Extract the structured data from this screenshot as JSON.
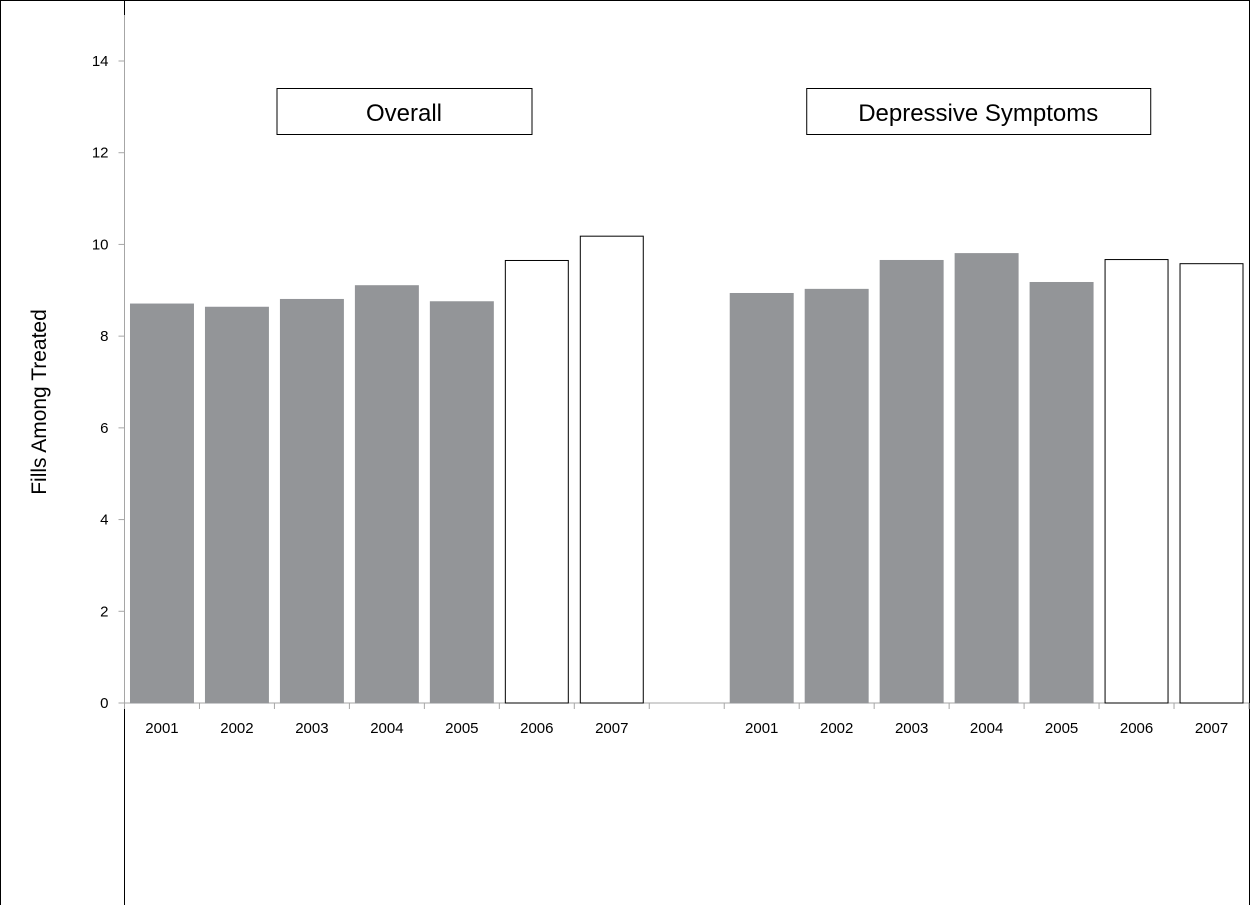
{
  "chart_data": {
    "type": "bar",
    "ylabel": "Fills Among Treated",
    "xlabel": "",
    "ylim": [
      0,
      15
    ],
    "yticks": [
      0,
      2,
      4,
      6,
      8,
      10,
      12,
      14
    ],
    "grid": false,
    "colors": {
      "pre": "#939598",
      "post": "#ffffff",
      "edge": "#000000"
    },
    "groups": [
      {
        "name": "Overall",
        "categories": [
          "2001",
          "2002",
          "2003",
          "2004",
          "2005",
          "2006",
          "2007"
        ],
        "values": [
          8.7,
          8.63,
          8.8,
          9.1,
          8.75,
          9.65,
          10.18
        ],
        "fills": [
          "pre",
          "pre",
          "pre",
          "pre",
          "pre",
          "post",
          "post"
        ]
      },
      {
        "name": "Depressive Symptoms",
        "categories": [
          "2001",
          "2002",
          "2003",
          "2004",
          "2005",
          "2006",
          "2007"
        ],
        "values": [
          8.93,
          9.02,
          9.65,
          9.8,
          9.17,
          9.67,
          9.58
        ],
        "fills": [
          "pre",
          "pre",
          "pre",
          "pre",
          "pre",
          "post",
          "post"
        ]
      }
    ]
  }
}
